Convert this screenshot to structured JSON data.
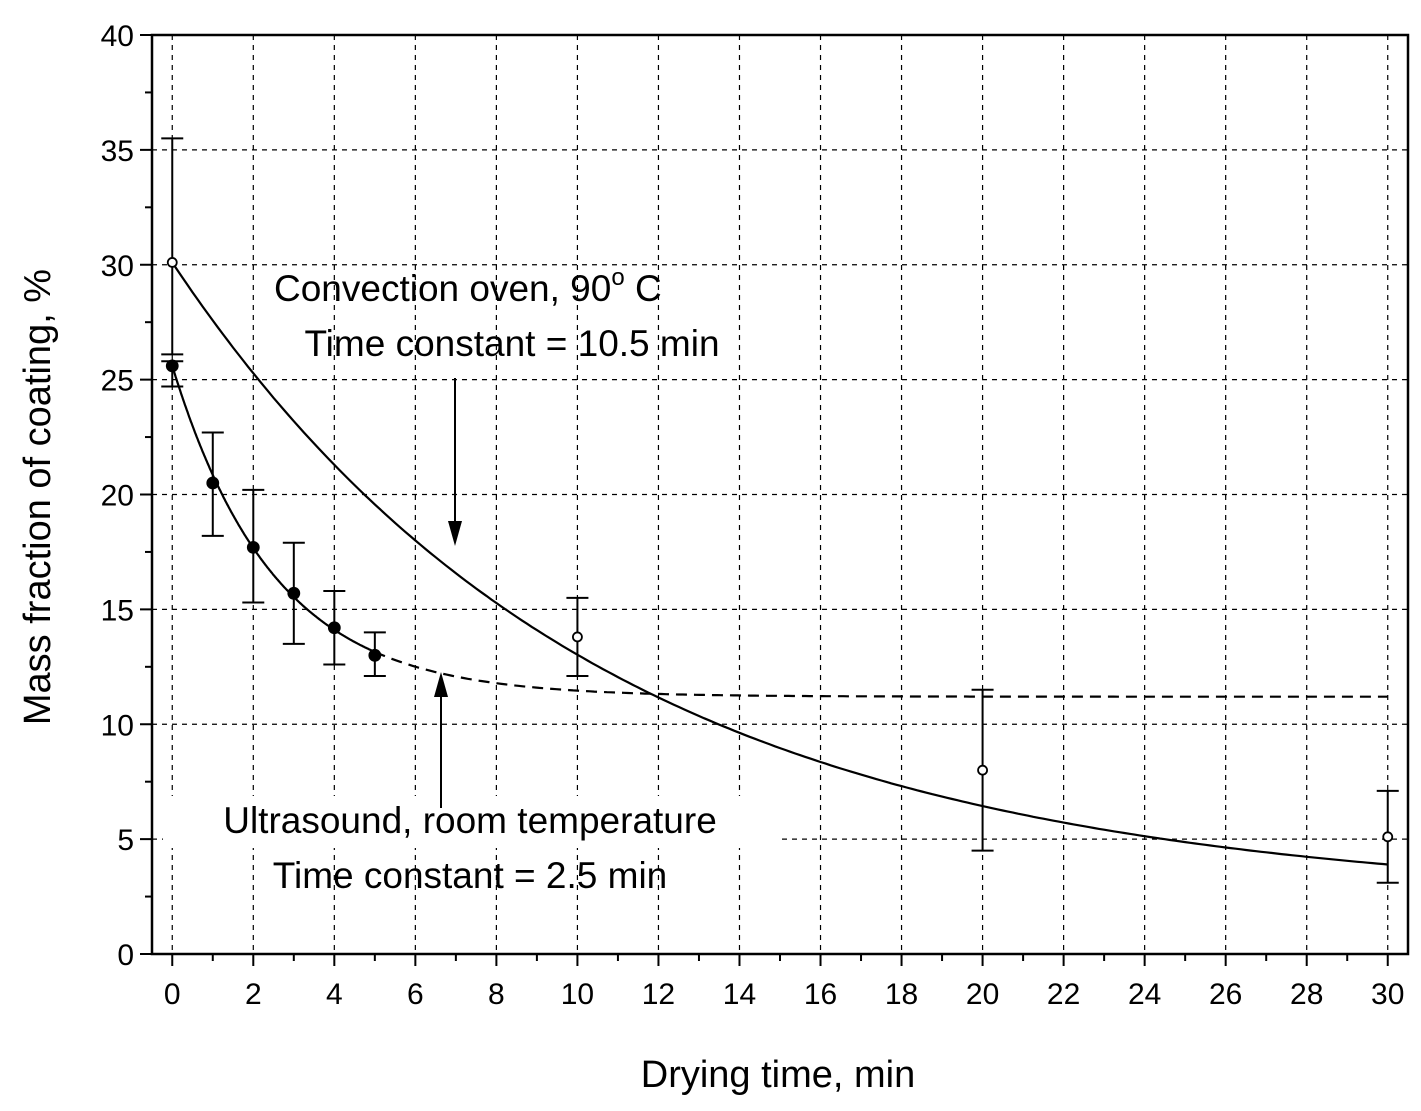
{
  "chart_data": {
    "type": "scatter",
    "xlabel": "Drying time, min",
    "ylabel": "Mass fraction of coating, %",
    "xlim": [
      -0.5,
      30.5
    ],
    "ylim": [
      0,
      40
    ],
    "x_ticks": [
      0,
      2,
      4,
      6,
      8,
      10,
      12,
      14,
      16,
      18,
      20,
      22,
      24,
      26,
      28,
      30
    ],
    "y_ticks": [
      0,
      5,
      10,
      15,
      20,
      25,
      30,
      35,
      40
    ],
    "grid": true,
    "series": [
      {
        "name": "Convection oven, 90° C",
        "marker": "open-circle",
        "x": [
          0,
          10,
          20,
          30
        ],
        "y": [
          30.1,
          13.8,
          8.0,
          5.1
        ],
        "err_low": [
          4.0,
          1.7,
          3.5,
          2.0
        ],
        "err_high": [
          5.4,
          1.7,
          3.5,
          2.0
        ],
        "fit": {
          "style": "solid",
          "model": "exponential",
          "y0": 30.1,
          "tau": 10.5,
          "y_inf": 2.3,
          "x_end": 30
        }
      },
      {
        "name": "Ultrasound, room temperature",
        "marker": "filled-circle",
        "x": [
          0,
          1,
          2,
          3,
          4,
          5
        ],
        "y": [
          25.6,
          20.5,
          17.7,
          15.7,
          14.2,
          13.0
        ],
        "err_low": [
          0.9,
          2.3,
          2.4,
          2.2,
          1.6,
          0.9
        ],
        "err_high": [
          0.2,
          2.2,
          2.5,
          2.2,
          1.6,
          1.0
        ],
        "fit": {
          "style": "solid-then-dashed",
          "model": "exponential",
          "y0": 25.6,
          "tau": 2.5,
          "y_inf": 11.2,
          "solid_until": 5,
          "x_end": 30
        }
      }
    ],
    "annotations": [
      {
        "line1": "Convection oven, 90",
        "line1_sup": "o",
        "line1_after": " C",
        "line2": "Time constant = 10.5 min",
        "arrow_to_series": "Convection oven"
      },
      {
        "line1": "Ultrasound, room temperature",
        "line2": "Time constant  = 2.5 min",
        "arrow_to_series": "Ultrasound"
      }
    ],
    "colors": {
      "axis": "#000000",
      "grid": "#000000",
      "line": "#000000",
      "background": "#ffffff"
    }
  }
}
